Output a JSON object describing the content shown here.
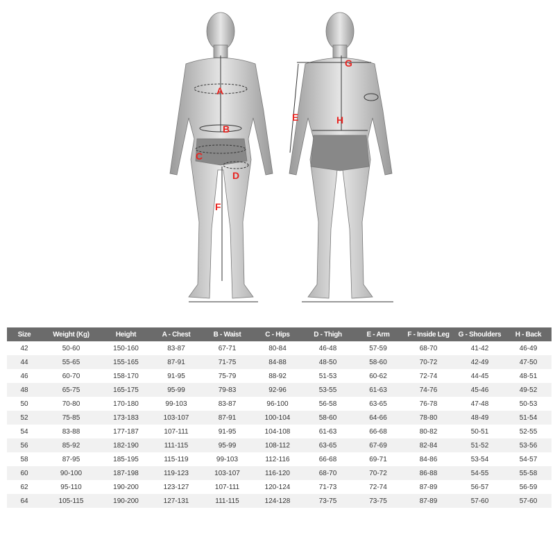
{
  "figure_labels": {
    "front": [
      "A",
      "B",
      "C",
      "D",
      "F"
    ],
    "back": [
      "G",
      "E",
      "H"
    ]
  },
  "label_color": "#e8231f",
  "size_table": {
    "headers": [
      "Size",
      "Weight (Kg)",
      "Height",
      "A - Chest",
      "B - Waist",
      "C - Hips",
      "D - Thigh",
      "E - Arm",
      "F - Inside Leg",
      "G - Shoulders",
      "H - Back"
    ],
    "rows": [
      [
        "42",
        "50-60",
        "150-160",
        "83-87",
        "67-71",
        "80-84",
        "46-48",
        "57-59",
        "68-70",
        "41-42",
        "46-49"
      ],
      [
        "44",
        "55-65",
        "155-165",
        "87-91",
        "71-75",
        "84-88",
        "48-50",
        "58-60",
        "70-72",
        "42-49",
        "47-50"
      ],
      [
        "46",
        "60-70",
        "158-170",
        "91-95",
        "75-79",
        "88-92",
        "51-53",
        "60-62",
        "72-74",
        "44-45",
        "48-51"
      ],
      [
        "48",
        "65-75",
        "165-175",
        "95-99",
        "79-83",
        "92-96",
        "53-55",
        "61-63",
        "74-76",
        "45-46",
        "49-52"
      ],
      [
        "50",
        "70-80",
        "170-180",
        "99-103",
        "83-87",
        "96-100",
        "56-58",
        "63-65",
        "76-78",
        "47-48",
        "50-53"
      ],
      [
        "52",
        "75-85",
        "173-183",
        "103-107",
        "87-91",
        "100-104",
        "58-60",
        "64-66",
        "78-80",
        "48-49",
        "51-54"
      ],
      [
        "54",
        "83-88",
        "177-187",
        "107-111",
        "91-95",
        "104-108",
        "61-63",
        "66-68",
        "80-82",
        "50-51",
        "52-55"
      ],
      [
        "56",
        "85-92",
        "182-190",
        "111-115",
        "95-99",
        "108-112",
        "63-65",
        "67-69",
        "82-84",
        "51-52",
        "53-56"
      ],
      [
        "58",
        "87-95",
        "185-195",
        "115-119",
        "99-103",
        "112-116",
        "66-68",
        "69-71",
        "84-86",
        "53-54",
        "54-57"
      ],
      [
        "60",
        "90-100",
        "187-198",
        "119-123",
        "103-107",
        "116-120",
        "68-70",
        "70-72",
        "86-88",
        "54-55",
        "55-58"
      ],
      [
        "62",
        "95-110",
        "190-200",
        "123-127",
        "107-111",
        "120-124",
        "71-73",
        "72-74",
        "87-89",
        "56-57",
        "56-59"
      ],
      [
        "64",
        "105-115",
        "190-200",
        "127-131",
        "111-115",
        "124-128",
        "73-75",
        "73-75",
        "87-89",
        "57-60",
        "57-60"
      ]
    ]
  }
}
